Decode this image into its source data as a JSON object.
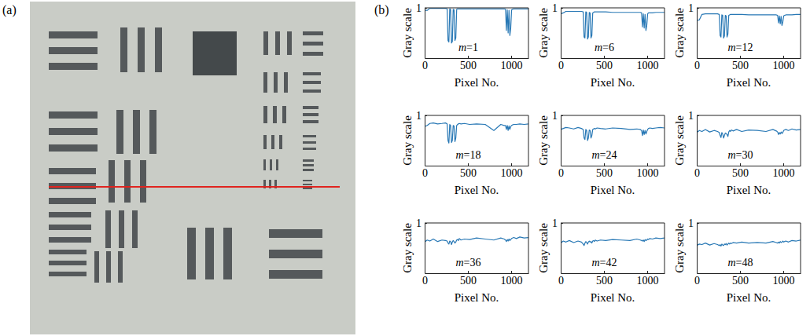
{
  "panel_labels": [
    "(a)",
    "(b)"
  ],
  "chart_data": [
    {
      "type": "line",
      "annotation": "m=1",
      "x_label": "Pixel No.",
      "y_label": "Gray scale",
      "xlim": [
        0,
        1200
      ],
      "ylim": [
        0,
        1
      ],
      "xticks": [
        0,
        500,
        1000
      ],
      "yticks": [
        1
      ],
      "color": "#2878b5",
      "x": [
        0,
        30,
        60,
        100,
        150,
        200,
        240,
        260,
        270,
        280,
        290,
        300,
        310,
        320,
        330,
        340,
        350,
        360,
        370,
        380,
        390,
        400,
        420,
        460,
        520,
        600,
        700,
        800,
        880,
        920,
        935,
        945,
        955,
        965,
        975,
        985,
        995,
        1005,
        1015,
        1030,
        1060,
        1100,
        1150,
        1200
      ],
      "values": [
        0.95,
        0.95,
        0.99,
        0.99,
        0.99,
        0.99,
        0.99,
        0.98,
        0.35,
        0.32,
        0.98,
        0.97,
        0.3,
        0.33,
        0.97,
        0.96,
        0.35,
        0.4,
        0.97,
        0.98,
        0.98,
        0.98,
        0.98,
        0.98,
        0.98,
        0.98,
        0.98,
        0.98,
        0.98,
        0.98,
        0.97,
        0.55,
        0.96,
        0.5,
        0.95,
        0.45,
        0.6,
        0.96,
        0.97,
        0.98,
        0.98,
        0.98,
        0.98,
        0.98
      ]
    },
    {
      "type": "line",
      "annotation": "m=6",
      "x_label": "Pixel No.",
      "y_label": "Gray scale",
      "xlim": [
        0,
        1200
      ],
      "ylim": [
        0,
        1
      ],
      "xticks": [
        0,
        500,
        1000
      ],
      "yticks": [
        1
      ],
      "color": "#2878b5",
      "x": [
        0,
        30,
        60,
        100,
        150,
        200,
        240,
        260,
        270,
        280,
        290,
        300,
        310,
        320,
        330,
        340,
        350,
        360,
        370,
        380,
        390,
        400,
        420,
        460,
        520,
        600,
        700,
        800,
        880,
        920,
        935,
        945,
        955,
        965,
        975,
        985,
        995,
        1005,
        1015,
        1030,
        1060,
        1100,
        1150,
        1200
      ],
      "values": [
        0.88,
        0.9,
        0.93,
        0.93,
        0.93,
        0.93,
        0.93,
        0.92,
        0.42,
        0.4,
        0.92,
        0.91,
        0.38,
        0.42,
        0.91,
        0.9,
        0.4,
        0.45,
        0.9,
        0.91,
        0.92,
        0.92,
        0.92,
        0.92,
        0.92,
        0.91,
        0.91,
        0.91,
        0.91,
        0.91,
        0.9,
        0.62,
        0.88,
        0.6,
        0.87,
        0.55,
        0.65,
        0.88,
        0.9,
        0.9,
        0.9,
        0.91,
        0.91,
        0.91
      ]
    },
    {
      "type": "line",
      "annotation": "m=12",
      "x_label": "Pixel No.",
      "y_label": "Gray scale",
      "xlim": [
        0,
        1200
      ],
      "ylim": [
        0,
        1
      ],
      "xticks": [
        0,
        500,
        1000
      ],
      "yticks": [
        1
      ],
      "color": "#2878b5",
      "x": [
        0,
        30,
        60,
        100,
        150,
        200,
        240,
        260,
        270,
        280,
        290,
        300,
        310,
        320,
        330,
        340,
        350,
        360,
        370,
        380,
        390,
        400,
        420,
        460,
        520,
        600,
        700,
        800,
        880,
        920,
        935,
        945,
        955,
        965,
        975,
        985,
        995,
        1005,
        1015,
        1030,
        1060,
        1100,
        1150,
        1200
      ],
      "values": [
        0.75,
        0.76,
        0.87,
        0.88,
        0.88,
        0.88,
        0.88,
        0.87,
        0.45,
        0.42,
        0.86,
        0.85,
        0.4,
        0.44,
        0.85,
        0.84,
        0.42,
        0.48,
        0.85,
        0.86,
        0.87,
        0.87,
        0.87,
        0.87,
        0.87,
        0.86,
        0.86,
        0.86,
        0.86,
        0.86,
        0.85,
        0.7,
        0.84,
        0.68,
        0.83,
        0.65,
        0.72,
        0.84,
        0.85,
        0.86,
        0.86,
        0.86,
        0.87,
        0.87
      ]
    },
    {
      "type": "line",
      "annotation": "m=18",
      "x_label": "Pixel No.",
      "y_label": "Gray scale",
      "xlim": [
        0,
        1200
      ],
      "ylim": [
        0,
        1
      ],
      "xticks": [
        0,
        500,
        1000
      ],
      "yticks": [
        1
      ],
      "color": "#2878b5",
      "x": [
        0,
        30,
        60,
        100,
        150,
        200,
        240,
        260,
        270,
        280,
        290,
        300,
        310,
        320,
        330,
        340,
        350,
        360,
        370,
        380,
        390,
        400,
        420,
        460,
        520,
        600,
        700,
        800,
        880,
        920,
        935,
        945,
        955,
        965,
        975,
        985,
        995,
        1005,
        1015,
        1030,
        1060,
        1100,
        1150,
        1200
      ],
      "values": [
        0.78,
        0.8,
        0.84,
        0.85,
        0.83,
        0.84,
        0.85,
        0.83,
        0.5,
        0.45,
        0.82,
        0.8,
        0.46,
        0.5,
        0.8,
        0.79,
        0.48,
        0.55,
        0.8,
        0.82,
        0.83,
        0.84,
        0.83,
        0.84,
        0.82,
        0.83,
        0.82,
        0.7,
        0.82,
        0.8,
        0.8,
        0.72,
        0.8,
        0.7,
        0.79,
        0.72,
        0.78,
        0.8,
        0.81,
        0.82,
        0.82,
        0.83,
        0.82,
        0.83
      ]
    },
    {
      "type": "line",
      "annotation": "m=24",
      "x_label": "Pixel No.",
      "y_label": "Gray scale",
      "xlim": [
        0,
        1200
      ],
      "ylim": [
        0,
        1
      ],
      "xticks": [
        0,
        500,
        1000
      ],
      "yticks": [
        1
      ],
      "color": "#2878b5",
      "x": [
        0,
        30,
        60,
        100,
        150,
        200,
        240,
        260,
        270,
        280,
        290,
        300,
        310,
        320,
        330,
        340,
        350,
        360,
        370,
        380,
        390,
        400,
        420,
        460,
        520,
        600,
        700,
        800,
        880,
        920,
        935,
        945,
        955,
        965,
        975,
        985,
        995,
        1005,
        1015,
        1030,
        1060,
        1100,
        1150,
        1200
      ],
      "values": [
        0.72,
        0.74,
        0.76,
        0.75,
        0.73,
        0.76,
        0.74,
        0.72,
        0.55,
        0.52,
        0.72,
        0.7,
        0.5,
        0.55,
        0.71,
        0.7,
        0.55,
        0.6,
        0.72,
        0.73,
        0.74,
        0.73,
        0.75,
        0.74,
        0.73,
        0.75,
        0.74,
        0.72,
        0.73,
        0.72,
        0.7,
        0.6,
        0.71,
        0.62,
        0.7,
        0.63,
        0.68,
        0.72,
        0.74,
        0.75,
        0.74,
        0.75,
        0.76,
        0.75
      ]
    },
    {
      "type": "line",
      "annotation": "m=30",
      "x_label": "Pixel No.",
      "y_label": "Gray scale",
      "xlim": [
        0,
        1200
      ],
      "ylim": [
        0,
        1
      ],
      "xticks": [
        0,
        500,
        1000
      ],
      "yticks": [
        1
      ],
      "color": "#2878b5",
      "x": [
        0,
        30,
        60,
        100,
        150,
        200,
        240,
        260,
        270,
        280,
        290,
        300,
        310,
        320,
        330,
        340,
        350,
        360,
        370,
        380,
        390,
        400,
        420,
        460,
        520,
        600,
        700,
        800,
        880,
        920,
        935,
        945,
        955,
        965,
        975,
        985,
        995,
        1005,
        1015,
        1030,
        1060,
        1100,
        1150,
        1200
      ],
      "values": [
        0.66,
        0.7,
        0.68,
        0.72,
        0.67,
        0.7,
        0.68,
        0.66,
        0.6,
        0.56,
        0.66,
        0.63,
        0.55,
        0.6,
        0.65,
        0.64,
        0.62,
        0.58,
        0.67,
        0.7,
        0.68,
        0.71,
        0.69,
        0.72,
        0.68,
        0.71,
        0.7,
        0.68,
        0.72,
        0.69,
        0.67,
        0.62,
        0.66,
        0.63,
        0.67,
        0.64,
        0.66,
        0.7,
        0.71,
        0.72,
        0.7,
        0.73,
        0.71,
        0.72
      ]
    },
    {
      "type": "line",
      "annotation": "m=36",
      "x_label": "Pixel No.",
      "y_label": "Gray scale",
      "xlim": [
        0,
        1200
      ],
      "ylim": [
        0,
        1
      ],
      "xticks": [
        0,
        500,
        1000
      ],
      "yticks": [
        1
      ],
      "color": "#2878b5",
      "x": [
        0,
        30,
        60,
        100,
        150,
        200,
        240,
        260,
        270,
        280,
        290,
        300,
        310,
        320,
        330,
        340,
        350,
        360,
        370,
        380,
        390,
        400,
        420,
        460,
        520,
        600,
        700,
        800,
        880,
        920,
        935,
        945,
        955,
        965,
        975,
        985,
        995,
        1005,
        1015,
        1030,
        1060,
        1100,
        1150,
        1200
      ],
      "values": [
        0.62,
        0.66,
        0.64,
        0.68,
        0.63,
        0.66,
        0.65,
        0.64,
        0.6,
        0.58,
        0.64,
        0.63,
        0.57,
        0.62,
        0.65,
        0.63,
        0.6,
        0.62,
        0.66,
        0.67,
        0.65,
        0.69,
        0.66,
        0.68,
        0.67,
        0.7,
        0.68,
        0.66,
        0.7,
        0.68,
        0.66,
        0.63,
        0.67,
        0.64,
        0.68,
        0.65,
        0.67,
        0.69,
        0.7,
        0.71,
        0.69,
        0.72,
        0.7,
        0.71
      ]
    },
    {
      "type": "line",
      "annotation": "m=42",
      "x_label": "Pixel No.",
      "y_label": "Gray scale",
      "xlim": [
        0,
        1200
      ],
      "ylim": [
        0,
        1
      ],
      "xticks": [
        0,
        500,
        1000
      ],
      "yticks": [
        1
      ],
      "color": "#2878b5",
      "x": [
        0,
        30,
        60,
        100,
        150,
        200,
        240,
        260,
        270,
        280,
        290,
        300,
        310,
        320,
        330,
        340,
        350,
        360,
        370,
        380,
        390,
        400,
        420,
        460,
        520,
        600,
        700,
        800,
        880,
        920,
        935,
        945,
        955,
        965,
        975,
        985,
        995,
        1005,
        1015,
        1030,
        1060,
        1100,
        1150,
        1200
      ],
      "values": [
        0.6,
        0.64,
        0.62,
        0.65,
        0.61,
        0.64,
        0.62,
        0.58,
        0.55,
        0.6,
        0.63,
        0.61,
        0.58,
        0.62,
        0.64,
        0.62,
        0.63,
        0.6,
        0.64,
        0.65,
        0.63,
        0.66,
        0.64,
        0.66,
        0.65,
        0.67,
        0.66,
        0.65,
        0.68,
        0.66,
        0.65,
        0.64,
        0.66,
        0.63,
        0.67,
        0.65,
        0.66,
        0.68,
        0.67,
        0.69,
        0.68,
        0.7,
        0.69,
        0.7
      ]
    },
    {
      "type": "line",
      "annotation": "m=48",
      "x_label": "Pixel No.",
      "y_label": "Gray scale",
      "xlim": [
        0,
        1200
      ],
      "ylim": [
        0,
        1
      ],
      "xticks": [
        0,
        500,
        1000
      ],
      "yticks": [
        1
      ],
      "color": "#2878b5",
      "x": [
        0,
        30,
        60,
        100,
        150,
        200,
        240,
        260,
        270,
        280,
        290,
        300,
        310,
        320,
        330,
        340,
        350,
        360,
        370,
        380,
        390,
        400,
        420,
        460,
        520,
        600,
        700,
        800,
        880,
        920,
        935,
        945,
        955,
        965,
        975,
        985,
        995,
        1005,
        1015,
        1030,
        1060,
        1100,
        1150,
        1200
      ],
      "values": [
        0.55,
        0.58,
        0.57,
        0.6,
        0.56,
        0.59,
        0.57,
        0.55,
        0.57,
        0.54,
        0.58,
        0.56,
        0.55,
        0.58,
        0.57,
        0.59,
        0.56,
        0.58,
        0.6,
        0.58,
        0.6,
        0.59,
        0.61,
        0.6,
        0.62,
        0.6,
        0.61,
        0.6,
        0.63,
        0.61,
        0.6,
        0.62,
        0.6,
        0.63,
        0.61,
        0.62,
        0.64,
        0.62,
        0.63,
        0.64,
        0.62,
        0.65,
        0.64,
        0.66
      ]
    }
  ]
}
